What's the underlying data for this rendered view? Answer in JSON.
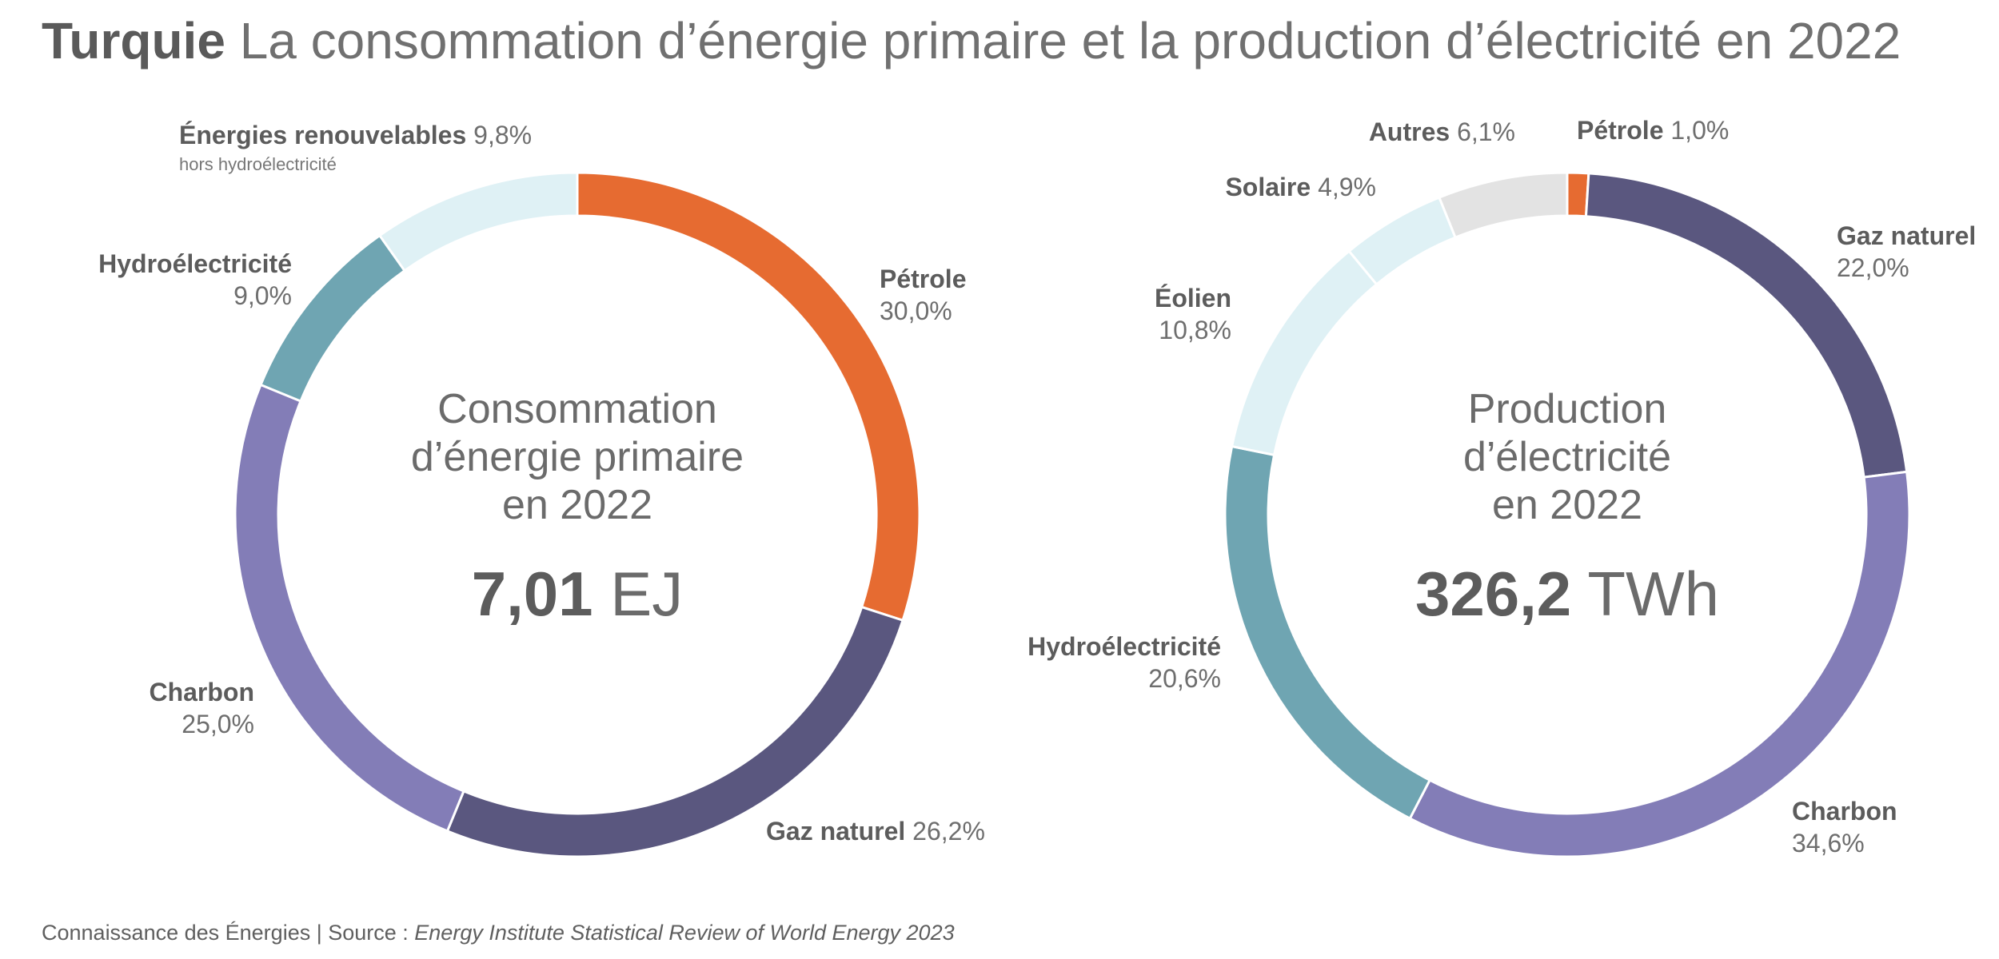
{
  "title": {
    "country": "Turquie",
    "text": "La consommation d’énergie primaire et la production d’électricité en 2022"
  },
  "chart_data": [
    {
      "type": "pie",
      "variant": "donut",
      "center_lines": [
        "Consommation",
        "d’énergie primaire",
        "en 2022"
      ],
      "center_value": "7,01",
      "center_unit": "EJ",
      "slices": [
        {
          "label": "Pétrole",
          "value": 30.0,
          "display": "30,0%",
          "color": "#e66b31"
        },
        {
          "label": "Gaz naturel",
          "value": 26.2,
          "display": "26,2%",
          "color": "#5a577f"
        },
        {
          "label": "Charbon",
          "value": 25.0,
          "display": "25,0%",
          "color": "#837db7"
        },
        {
          "label": "Hydroélectricité",
          "value": 9.0,
          "display": "9,0%",
          "color": "#6fa5b2"
        },
        {
          "label": "Énergies renouvelables",
          "sublabel": "hors hydroélectricité",
          "value": 9.8,
          "display": "9,8%",
          "color": "#dff1f5"
        }
      ]
    },
    {
      "type": "pie",
      "variant": "donut",
      "center_lines": [
        "Production",
        "d’électricité",
        "en 2022"
      ],
      "center_value": "326,2",
      "center_unit": "TWh",
      "slices": [
        {
          "label": "Pétrole",
          "value": 1.0,
          "display": "1,0%",
          "color": "#e66b31"
        },
        {
          "label": "Gaz naturel",
          "value": 22.0,
          "display": "22,0%",
          "color": "#5a577f"
        },
        {
          "label": "Charbon",
          "value": 34.6,
          "display": "34,6%",
          "color": "#837db7"
        },
        {
          "label": "Hydroélectricité",
          "value": 20.6,
          "display": "20,6%",
          "color": "#6fa5b2"
        },
        {
          "label": "Éolien",
          "value": 10.8,
          "display": "10,8%",
          "color": "#dff1f5"
        },
        {
          "label": "Solaire",
          "value": 4.9,
          "display": "4,9%",
          "color": "#dff1f5"
        },
        {
          "label": "Autres",
          "value": 6.1,
          "display": "6,1%",
          "color": "#e3e3e3"
        }
      ]
    }
  ],
  "footer": {
    "prefix": "Connaissance des Énergies | Source : ",
    "source": "Energy Institute Statistical Review of World Energy 2023"
  }
}
